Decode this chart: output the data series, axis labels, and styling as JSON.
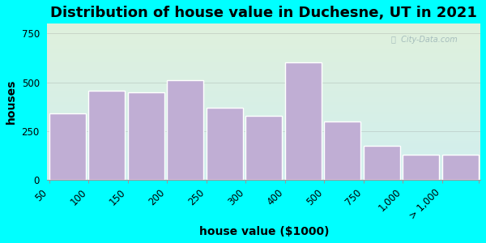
{
  "title": "Distribution of house value in Duchesne, UT in 2021",
  "xlabel": "house value ($1000)",
  "ylabel": "houses",
  "categories": [
    "50",
    "100",
    "150",
    "200",
    "250",
    "300",
    "400",
    "500",
    "750",
    "1,000",
    "> 1,000"
  ],
  "bar_values": [
    340,
    455,
    450,
    510,
    370,
    330,
    600,
    300,
    175,
    130,
    130
  ],
  "bar_color": "#c0aed4",
  "background_color": "#00ffff",
  "plot_bg_top": "#dff0dc",
  "plot_bg_bottom": "#d0eeee",
  "yticks": [
    0,
    250,
    500,
    750
  ],
  "ylim": [
    0,
    800
  ],
  "title_fontsize": 13,
  "label_fontsize": 10,
  "tick_fontsize": 8.5
}
